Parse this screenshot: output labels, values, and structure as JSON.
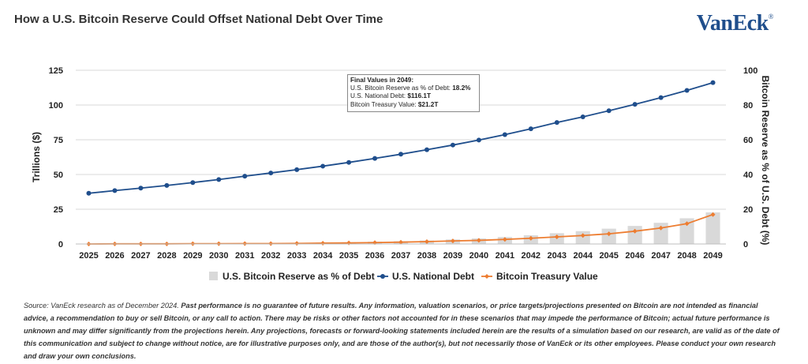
{
  "title": "How a U.S. Bitcoin Reserve Could Offset National Debt Over Time",
  "logo": {
    "text": "VanEck",
    "mark": "®"
  },
  "colors": {
    "debt": "#1f4e8c",
    "treasury": "#ed7d31",
    "reserve_bar": "#d9d9d9",
    "grid": "#d9d9d9"
  },
  "annotation": {
    "title": "Final Values in 2049:",
    "line1_label": "U.S. Bitcoin Reserve as % of Debt:",
    "line1_value": "18.2%",
    "line2_label": "U.S. National Debt:",
    "line2_value": "$116.1T",
    "line3_label": "Bitcoin Treasury Value:",
    "line3_value": "$21.2T"
  },
  "footnote": {
    "source": "Source: VanEck research as of December 2024.",
    "disclaimer": "Past performance is no guarantee of future results. Any information, valuation scenarios, or price targets/projections presented on Bitcoin are not intended as financial advice, a recommendation to buy or sell Bitcoin, or any call to action. There may be risks or other factors not accounted for in these scenarios that may impede the performance of Bitcoin; actual future performance is unknown and may differ significantly from the projections herein. Any projections, forecasts or forward-looking statements included herein are the results of a simulation based on our research, are valid as of the date of this communication and subject to change without notice, are for illustrative purposes only, and are those of the author(s), but not necessarily those of VanEck or its other employees. Please conduct your own research and draw your own conclusions."
  },
  "chart_data": {
    "type": "bar",
    "categories": [
      "2025",
      "2026",
      "2027",
      "2028",
      "2029",
      "2030",
      "2031",
      "2032",
      "2033",
      "2034",
      "2035",
      "2036",
      "2037",
      "2038",
      "2039",
      "2040",
      "2041",
      "2042",
      "2043",
      "2044",
      "2045",
      "2046",
      "2047",
      "2048",
      "2049"
    ],
    "xlabel": "",
    "ylabel": "Trillions ($)",
    "y2label": "Bitcoin Reserve as % of U.S. Debt (%)",
    "ylim": [
      0,
      125
    ],
    "yticks": [
      0,
      25,
      50,
      75,
      100,
      125
    ],
    "y2lim": [
      0,
      100
    ],
    "y2ticks": [
      0,
      20,
      40,
      60,
      80,
      100
    ],
    "grid": true,
    "legend_position": "bottom",
    "series": [
      {
        "name": "U.S. Bitcoin Reserve as % of Debt",
        "type": "bar",
        "axis": "right",
        "values": [
          0.1,
          0.1,
          0.2,
          0.2,
          0.3,
          0.3,
          0.4,
          0.5,
          0.6,
          0.8,
          1.0,
          1.3,
          1.6,
          2.0,
          2.6,
          3.2,
          4.0,
          5.0,
          6.2,
          7.4,
          8.8,
          10.4,
          12.2,
          14.8,
          18.2
        ]
      },
      {
        "name": "U.S. National Debt",
        "type": "line",
        "axis": "left",
        "values": [
          36.5,
          38.4,
          40.2,
          42.1,
          44.2,
          46.4,
          48.8,
          51.1,
          53.5,
          56.0,
          58.7,
          61.6,
          64.6,
          67.8,
          71.2,
          74.8,
          78.7,
          82.9,
          87.4,
          91.5,
          95.9,
          100.5,
          105.3,
          110.5,
          116.1
        ]
      },
      {
        "name": "Bitcoin Treasury Value",
        "type": "line",
        "axis": "left",
        "values": [
          0.0,
          0.1,
          0.1,
          0.1,
          0.2,
          0.2,
          0.3,
          0.3,
          0.4,
          0.6,
          0.8,
          1.0,
          1.3,
          1.7,
          2.2,
          2.6,
          3.3,
          4.1,
          5.1,
          6.1,
          7.3,
          9.2,
          11.5,
          14.6,
          21.2
        ]
      }
    ]
  }
}
